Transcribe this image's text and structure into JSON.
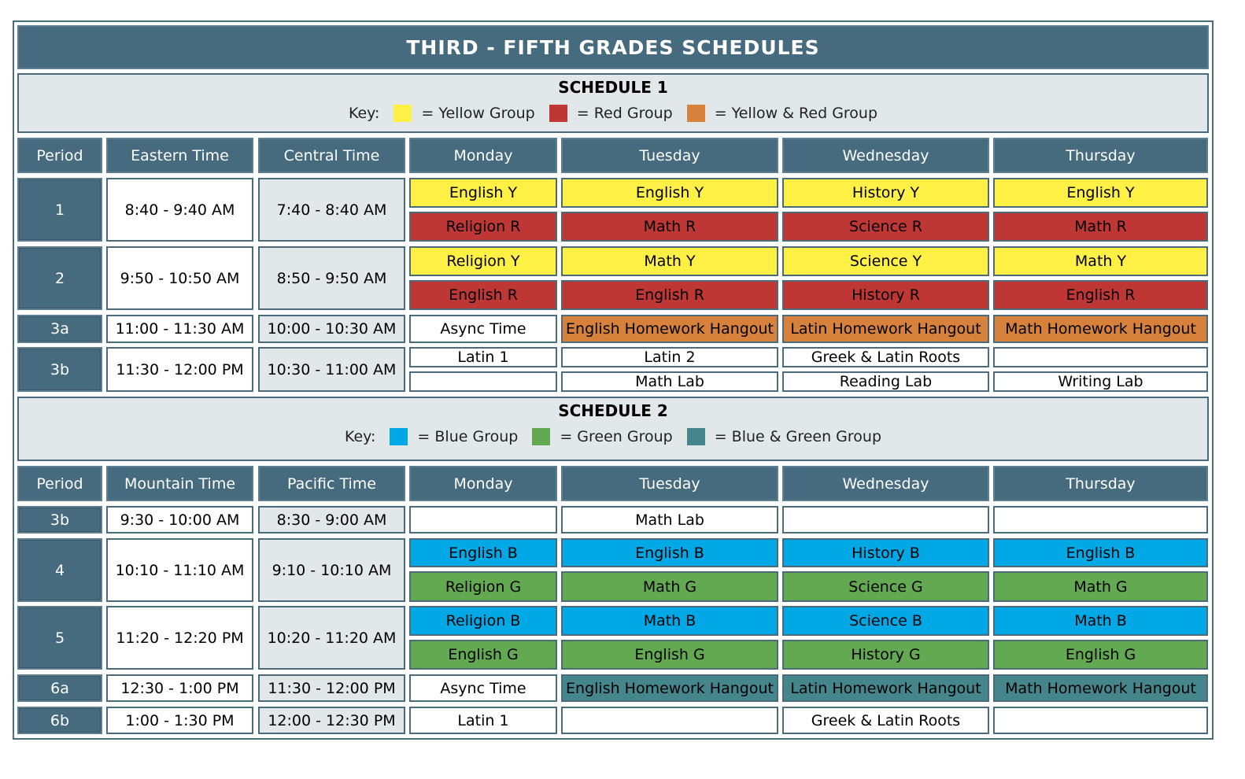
{
  "title": "THIRD - FIFTH GRADES SCHEDULES",
  "colors": {
    "Y": "#fef045",
    "R": "#be3735",
    "YR": "#d6813c",
    "B": "#00a8e6",
    "G": "#63a952",
    "BG": "#45858c",
    "W": "#ffffff"
  },
  "schedules": [
    {
      "heading": "SCHEDULE 1",
      "key_label": "Key:",
      "key": [
        {
          "color": "Y",
          "label": "= Yellow Group"
        },
        {
          "color": "R",
          "label": "= Red Group"
        },
        {
          "color": "YR",
          "label": "= Yellow & Red Group"
        }
      ],
      "columns": [
        "Period",
        "Eastern Time",
        "Central Time",
        "Monday",
        "Tuesday",
        "Wednesday",
        "Thursday"
      ],
      "rows": [
        {
          "period": "1",
          "t1": "8:40 - 9:40 AM",
          "t2": "7:40 - 8:40 AM",
          "slots": [
            [
              [
                "English Y",
                "Y"
              ],
              [
                "English Y",
                "Y"
              ],
              [
                "History Y",
                "Y"
              ],
              [
                "English Y",
                "Y"
              ]
            ],
            [
              [
                "Religion R",
                "R"
              ],
              [
                "Math R",
                "R"
              ],
              [
                "Science R",
                "R"
              ],
              [
                "Math R",
                "R"
              ]
            ]
          ]
        },
        {
          "period": "2",
          "t1": "9:50 - 10:50 AM",
          "t2": "8:50 - 9:50 AM",
          "slots": [
            [
              [
                "Religion Y",
                "Y"
              ],
              [
                "Math Y",
                "Y"
              ],
              [
                "Science Y",
                "Y"
              ],
              [
                "Math Y",
                "Y"
              ]
            ],
            [
              [
                "English R",
                "R"
              ],
              [
                "English R",
                "R"
              ],
              [
                "History R",
                "R"
              ],
              [
                "English R",
                "R"
              ]
            ]
          ]
        },
        {
          "period": "3a",
          "t1": "11:00 - 11:30 AM",
          "t2": "10:00 - 10:30 AM",
          "slots": [
            [
              [
                "Async Time",
                "W"
              ],
              [
                "English Homework Hangout",
                "YR"
              ],
              [
                "Latin Homework Hangout",
                "YR"
              ],
              [
                "Math Homework Hangout",
                "YR"
              ]
            ]
          ]
        },
        {
          "period": "3b",
          "t1": "11:30 - 12:00 PM",
          "t2": "10:30 - 11:00 AM",
          "slots": [
            [
              [
                "Latin 1",
                "W"
              ],
              [
                "Latin 2",
                "W"
              ],
              [
                "Greek & Latin Roots",
                "W"
              ],
              [
                "",
                "W"
              ]
            ],
            [
              [
                "",
                "W"
              ],
              [
                "Math Lab",
                "W"
              ],
              [
                "Reading Lab",
                "W"
              ],
              [
                "Writing Lab",
                "W"
              ]
            ]
          ]
        }
      ]
    },
    {
      "heading": "SCHEDULE 2",
      "key_label": "Key:",
      "key": [
        {
          "color": "B",
          "label": "= Blue Group"
        },
        {
          "color": "G",
          "label": "= Green Group"
        },
        {
          "color": "BG",
          "label": "= Blue & Green Group"
        }
      ],
      "columns": [
        "Period",
        "Mountain Time",
        "Pacific Time",
        "Monday",
        "Tuesday",
        "Wednesday",
        "Thursday"
      ],
      "rows": [
        {
          "period": "3b",
          "t1": "9:30 - 10:00 AM",
          "t2": "8:30 - 9:00 AM",
          "slots": [
            [
              [
                "",
                "W"
              ],
              [
                "Math Lab",
                "W"
              ],
              [
                "",
                "W"
              ],
              [
                "",
                "W"
              ]
            ]
          ]
        },
        {
          "period": "4",
          "t1": "10:10 - 11:10 AM",
          "t2": "9:10 - 10:10 AM",
          "slots": [
            [
              [
                "English B",
                "B"
              ],
              [
                "English B",
                "B"
              ],
              [
                "History B",
                "B"
              ],
              [
                "English B",
                "B"
              ]
            ],
            [
              [
                "Religion G",
                "G"
              ],
              [
                "Math G",
                "G"
              ],
              [
                "Science G",
                "G"
              ],
              [
                "Math G",
                "G"
              ]
            ]
          ]
        },
        {
          "period": "5",
          "t1": "11:20 - 12:20 PM",
          "t2": "10:20 - 11:20 AM",
          "slots": [
            [
              [
                "Religion B",
                "B"
              ],
              [
                "Math B",
                "B"
              ],
              [
                "Science B",
                "B"
              ],
              [
                "Math B",
                "B"
              ]
            ],
            [
              [
                "English G",
                "G"
              ],
              [
                "English G",
                "G"
              ],
              [
                "History G",
                "G"
              ],
              [
                "English G",
                "G"
              ]
            ]
          ]
        },
        {
          "period": "6a",
          "t1": "12:30 - 1:00 PM",
          "t2": "11:30 - 12:00 PM",
          "slots": [
            [
              [
                "Async Time",
                "W"
              ],
              [
                "English Homework Hangout",
                "BG"
              ],
              [
                "Latin Homework Hangout",
                "BG"
              ],
              [
                "Math Homework Hangout",
                "BG"
              ]
            ]
          ]
        },
        {
          "period": "6b",
          "t1": "1:00 - 1:30 PM",
          "t2": "12:00 - 12:30 PM",
          "slots": [
            [
              [
                "Latin 1",
                "W"
              ],
              [
                "",
                "W"
              ],
              [
                "Greek & Latin Roots",
                "W"
              ],
              [
                "",
                "W"
              ]
            ]
          ]
        }
      ]
    }
  ]
}
